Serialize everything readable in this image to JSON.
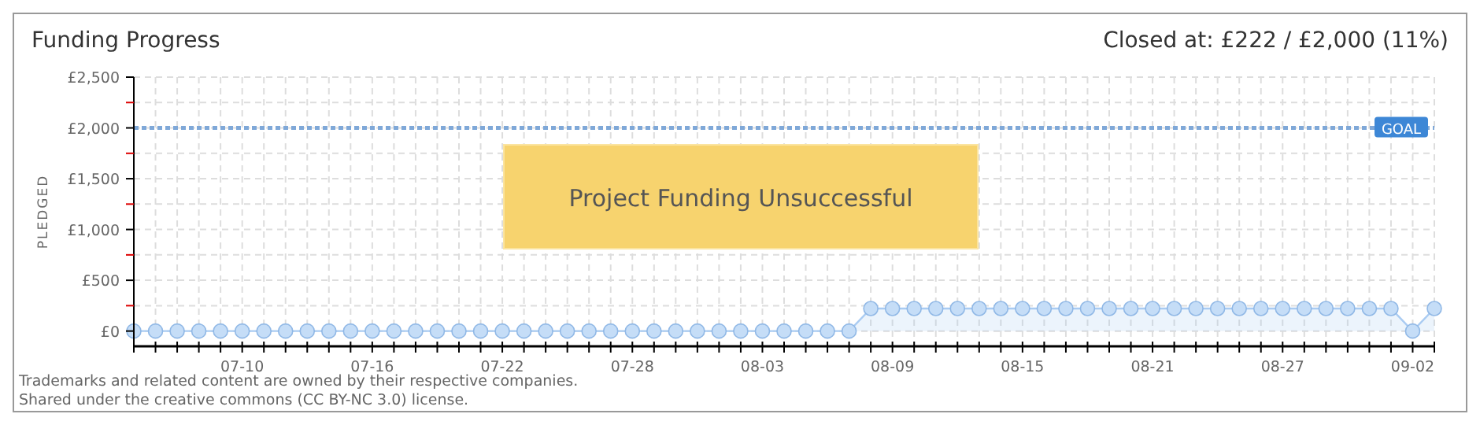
{
  "chart_data": {
    "type": "area",
    "title": "Funding Progress",
    "subtitle": "Closed at:  £222 / £2,000 (11%)",
    "ylabel": "PLEDGED",
    "series": [
      {
        "color": "#a9cbf2",
        "x": [
          "--07-05",
          "--07-06",
          "--07-07",
          "--07-08",
          "--07-09",
          "--07-10",
          "--07-11",
          "--07-12",
          "--07-13",
          "--07-14",
          "--07-15",
          "--07-16",
          "--07-17",
          "--07-18",
          "--07-19",
          "--07-20",
          "--07-21",
          "--07-22",
          "--07-23",
          "--07-24",
          "--07-25",
          "--07-26",
          "--07-27",
          "--07-28",
          "--07-29",
          "--07-30",
          "--07-31",
          "--08-01",
          "--08-02",
          "--08-03",
          "--08-04",
          "--08-05",
          "--08-06",
          "--08-07",
          "--08-08",
          "--08-09",
          "--08-10",
          "--08-11",
          "--08-12",
          "--08-13",
          "--08-14",
          "--08-15",
          "--08-16",
          "--08-17",
          "--08-18",
          "--08-19",
          "--08-20",
          "--08-21",
          "--08-22",
          "--08-23",
          "--08-24",
          "--08-25",
          "--08-26",
          "--08-27",
          "--08-28",
          "--08-29",
          "--08-30",
          "--08-31",
          "--09-01",
          "--09-02",
          "--09-03"
        ],
        "values": [
          0,
          0,
          0,
          0,
          0,
          0,
          0,
          0,
          0,
          0,
          0,
          0,
          0,
          0,
          0,
          0,
          0,
          0,
          0,
          0,
          0,
          0,
          0,
          0,
          0,
          0,
          0,
          0,
          0,
          0,
          0,
          0,
          0,
          0,
          222,
          222,
          222,
          222,
          222,
          222,
          222,
          222,
          222,
          222,
          222,
          222,
          222,
          222,
          222,
          222,
          222,
          222,
          222,
          222,
          222,
          222,
          222,
          222,
          222,
          0,
          222
        ]
      }
    ],
    "xlim": [
      "--07-05",
      "--09-03"
    ],
    "xticks": [
      {
        "value": "--07-05",
        "label": null
      },
      {
        "value": "--07-06",
        "label": null
      },
      {
        "value": "--07-07",
        "label": null
      },
      {
        "value": "--07-08",
        "label": null
      },
      {
        "value": "--07-09",
        "label": null
      },
      {
        "value": "--07-10",
        "label": "07-10"
      },
      {
        "value": "--07-11",
        "label": null
      },
      {
        "value": "--07-12",
        "label": null
      },
      {
        "value": "--07-13",
        "label": null
      },
      {
        "value": "--07-14",
        "label": null
      },
      {
        "value": "--07-15",
        "label": null
      },
      {
        "value": "--07-16",
        "label": "07-16"
      },
      {
        "value": "--07-17",
        "label": null
      },
      {
        "value": "--07-18",
        "label": null
      },
      {
        "value": "--07-19",
        "label": null
      },
      {
        "value": "--07-20",
        "label": null
      },
      {
        "value": "--07-21",
        "label": null
      },
      {
        "value": "--07-22",
        "label": "07-22"
      },
      {
        "value": "--07-23",
        "label": null
      },
      {
        "value": "--07-24",
        "label": null
      },
      {
        "value": "--07-25",
        "label": null
      },
      {
        "value": "--07-26",
        "label": null
      },
      {
        "value": "--07-27",
        "label": null
      },
      {
        "value": "--07-28",
        "label": "07-28"
      },
      {
        "value": "--07-29",
        "label": null
      },
      {
        "value": "--07-30",
        "label": null
      },
      {
        "value": "--07-31",
        "label": null
      },
      {
        "value": "--08-01",
        "label": null
      },
      {
        "value": "--08-02",
        "label": null
      },
      {
        "value": "--08-03",
        "label": "08-03"
      },
      {
        "value": "--08-04",
        "label": null
      },
      {
        "value": "--08-05",
        "label": null
      },
      {
        "value": "--08-06",
        "label": null
      },
      {
        "value": "--08-07",
        "label": null
      },
      {
        "value": "--08-08",
        "label": null
      },
      {
        "value": "--08-09",
        "label": "08-09"
      },
      {
        "value": "--08-10",
        "label": null
      },
      {
        "value": "--08-11",
        "label": null
      },
      {
        "value": "--08-12",
        "label": null
      },
      {
        "value": "--08-13",
        "label": null
      },
      {
        "value": "--08-14",
        "label": null
      },
      {
        "value": "--08-15",
        "label": "08-15"
      },
      {
        "value": "--08-16",
        "label": null
      },
      {
        "value": "--08-17",
        "label": null
      },
      {
        "value": "--08-18",
        "label": null
      },
      {
        "value": "--08-19",
        "label": null
      },
      {
        "value": "--08-20",
        "label": null
      },
      {
        "value": "--08-21",
        "label": "08-21"
      },
      {
        "value": "--08-22",
        "label": null
      },
      {
        "value": "--08-23",
        "label": null
      },
      {
        "value": "--08-24",
        "label": null
      },
      {
        "value": "--08-25",
        "label": null
      },
      {
        "value": "--08-26",
        "label": null
      },
      {
        "value": "--08-27",
        "label": "08-27"
      },
      {
        "value": "--08-28",
        "label": null
      },
      {
        "value": "--08-29",
        "label": null
      },
      {
        "value": "--08-30",
        "label": null
      },
      {
        "value": "--08-31",
        "label": null
      },
      {
        "value": "--09-01",
        "label": null
      },
      {
        "value": "--09-02",
        "label": "09-02"
      },
      {
        "value": "--09-03",
        "label": null
      }
    ],
    "ylim": [
      -150,
      2500
    ],
    "yticks": [
      {
        "value": 0,
        "label": "£0"
      },
      {
        "value": 250,
        "label": null
      },
      {
        "value": 500,
        "label": "£500"
      },
      {
        "value": 750,
        "label": null
      },
      {
        "value": 1000,
        "label": "£1,000"
      },
      {
        "value": 1250,
        "label": null
      },
      {
        "value": 1500,
        "label": "£1,500"
      },
      {
        "value": 1750,
        "label": null
      },
      {
        "value": 2000,
        "label": "£2,000"
      },
      {
        "value": 2250,
        "label": null
      },
      {
        "value": 2500,
        "label": "£2,500"
      }
    ],
    "ref_lines": [
      {
        "axis": "y",
        "value": 2000,
        "label": "GOAL",
        "color": "#7fa8d8",
        "line_style": "dotted"
      }
    ],
    "annotations": [
      "Project Funding Unsuccessful",
      "Trademarks and related content are owned by their respective companies.",
      "Shared under the creative commons (CC BY-NC 3.0) license."
    ],
    "grid": true,
    "marker": "circle",
    "line_style": "solid"
  }
}
